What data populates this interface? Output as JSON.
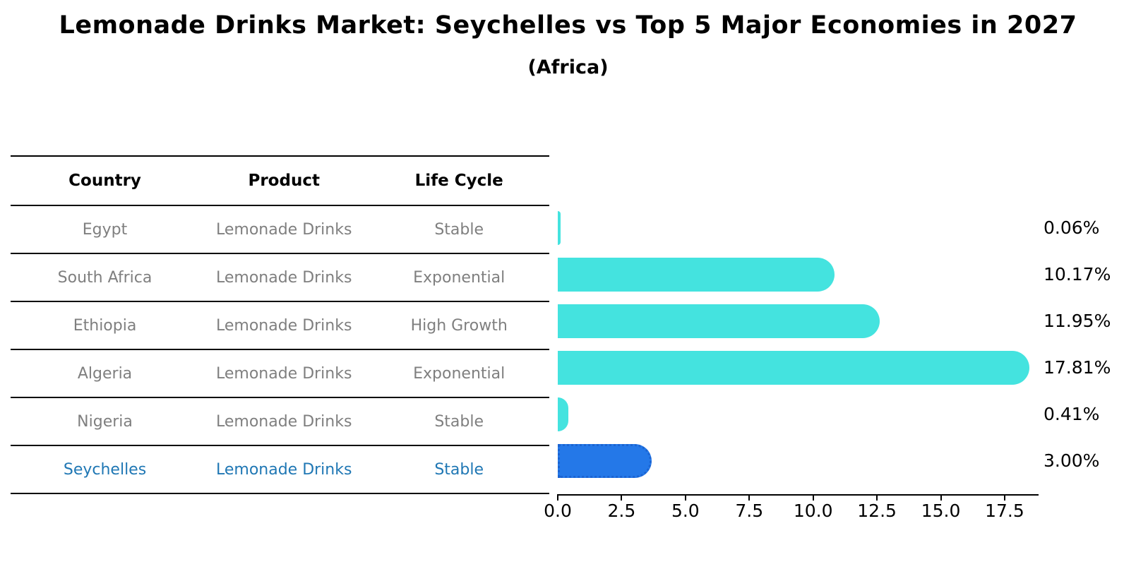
{
  "header": {
    "title": "Lemonade Drinks Market: Seychelles vs Top 5 Major Economies in 2027",
    "subtitle": "(Africa)"
  },
  "table": {
    "columns": [
      "Country",
      "Product",
      "Life Cycle"
    ],
    "rows": [
      {
        "country": "Egypt",
        "product": "Lemonade Drinks",
        "life_cycle": "Stable",
        "highlight": false
      },
      {
        "country": "South Africa",
        "product": "Lemonade Drinks",
        "life_cycle": "Exponential",
        "highlight": false
      },
      {
        "country": "Ethiopia",
        "product": "Lemonade Drinks",
        "life_cycle": "High Growth",
        "highlight": false
      },
      {
        "country": "Algeria",
        "product": "Lemonade Drinks",
        "life_cycle": "Exponential",
        "highlight": false
      },
      {
        "country": "Nigeria",
        "product": "Lemonade Drinks",
        "life_cycle": "Stable",
        "highlight": false
      },
      {
        "country": "Seychelles",
        "product": "Lemonade Drinks",
        "life_cycle": "Stable",
        "highlight": true
      }
    ]
  },
  "chart_data": {
    "type": "bar",
    "orientation": "horizontal",
    "title": "Lemonade Drinks Market: Seychelles vs Top 5 Major Economies in 2027",
    "subtitle": "(Africa)",
    "categories": [
      "Egypt",
      "South Africa",
      "Ethiopia",
      "Algeria",
      "Nigeria",
      "Seychelles"
    ],
    "values": [
      0.06,
      10.17,
      11.95,
      17.81,
      0.41,
      3.0
    ],
    "value_labels": [
      "0.06%",
      "10.17%",
      "11.95%",
      "17.81%",
      "0.41%",
      "3.00%"
    ],
    "highlight_index": 5,
    "x_ticks": [
      0.0,
      2.5,
      5.0,
      7.5,
      10.0,
      12.5,
      15.0,
      17.5
    ],
    "x_tick_labels": [
      "0.0",
      "2.5",
      "5.0",
      "7.5",
      "10.0",
      "12.5",
      "15.0",
      "17.5"
    ],
    "xlim": [
      0,
      18.8
    ],
    "grid": false,
    "legend": false,
    "unit": "%"
  },
  "colors": {
    "bar": "#44E3DF",
    "highlight_bar": "#2478E8",
    "highlight_bar_border": "#1B64D2",
    "highlight_text": "#1F77B4",
    "table_text": "#7f7f7f",
    "axis_line": "#000000"
  }
}
